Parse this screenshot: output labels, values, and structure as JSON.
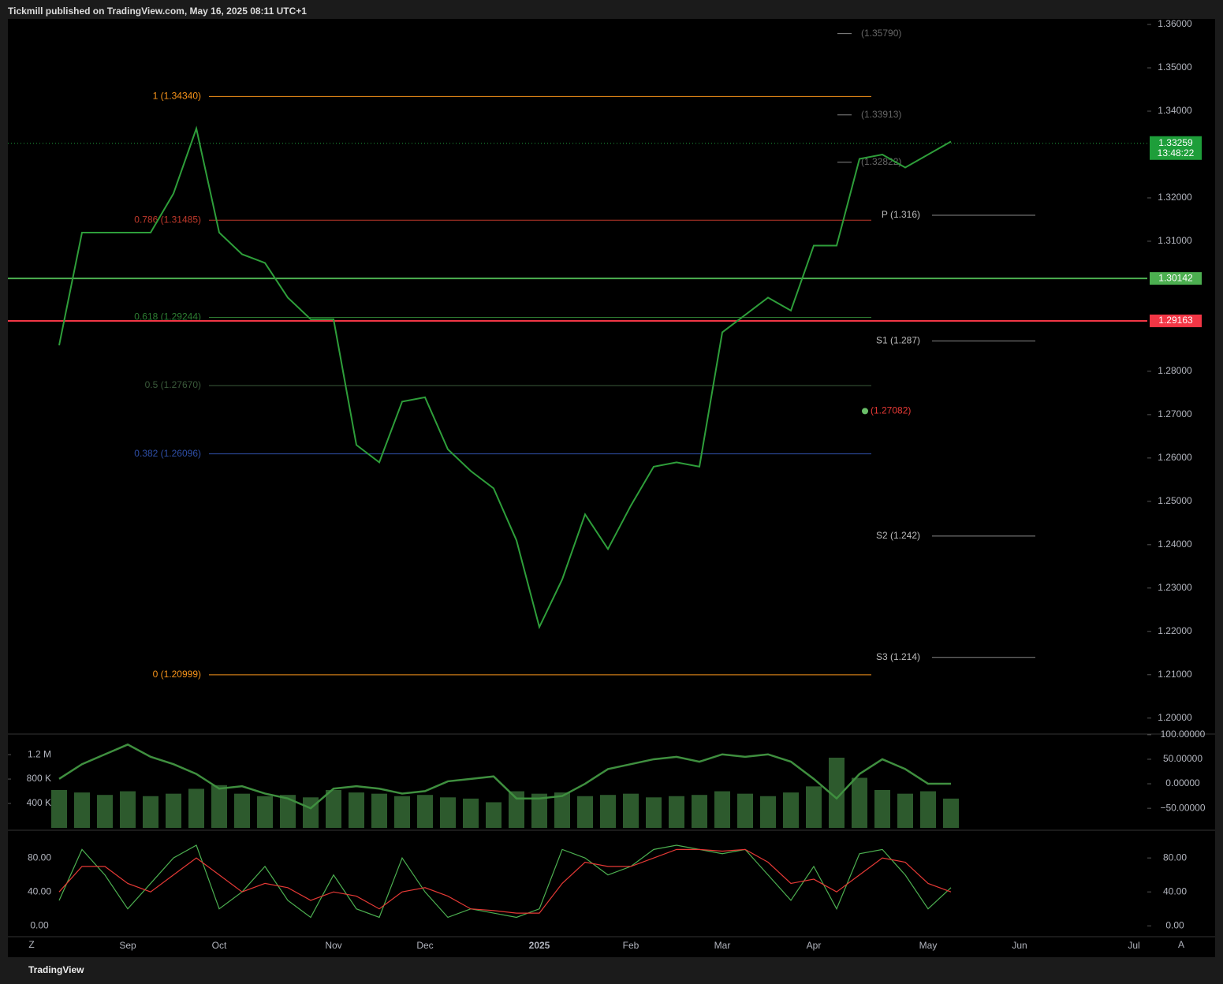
{
  "header": {
    "publisher": "Tickmill published on TradingView.com, May 16, 2025 08:11 UTC+1"
  },
  "footer": {
    "brand": "TradingView",
    "left_button": "Z",
    "right_button": "A"
  },
  "chart_data": [
    {
      "type": "line",
      "categories": [
        null,
        null,
        null,
        "Sep",
        null,
        null,
        null,
        "Oct",
        null,
        null,
        null,
        null,
        "Nov",
        null,
        null,
        null,
        "Dec",
        null,
        null,
        null,
        null,
        "2025",
        null,
        null,
        null,
        "Feb",
        null,
        null,
        null,
        "Mar",
        null,
        null,
        null,
        "Apr",
        null,
        null,
        null,
        null,
        "May",
        null,
        null,
        null,
        "Jun",
        null,
        null,
        null,
        null,
        "Jul"
      ],
      "values": [
        1.286,
        1.312,
        1.312,
        1.312,
        1.312,
        1.321,
        1.336,
        1.312,
        1.307,
        1.305,
        1.297,
        1.292,
        1.292,
        1.263,
        1.259,
        1.273,
        1.274,
        1.262,
        1.257,
        1.253,
        1.241,
        1.221,
        1.232,
        1.247,
        1.239,
        1.249,
        1.258,
        1.259,
        1.258,
        1.289,
        1.293,
        1.297,
        1.294,
        1.309,
        1.309,
        1.329,
        1.33,
        1.327,
        1.33,
        1.333,
        null,
        null,
        null,
        null,
        null,
        null,
        null,
        null
      ],
      "color": "#2e9e3a",
      "ylim": [
        1.1965,
        1.3611
      ],
      "yticks": [
        {
          "value": 1.2,
          "label": "1.20000"
        },
        {
          "value": 1.21,
          "label": "1.21000"
        },
        {
          "value": 1.22,
          "label": "1.22000"
        },
        {
          "value": 1.23,
          "label": "1.23000"
        },
        {
          "value": 1.24,
          "label": "1.24000"
        },
        {
          "value": 1.25,
          "label": "1.25000"
        },
        {
          "value": 1.26,
          "label": "1.26000"
        },
        {
          "value": 1.27,
          "label": "1.27000"
        },
        {
          "value": 1.28,
          "label": "1.28000"
        },
        {
          "value": 1.31,
          "label": "1.31000"
        },
        {
          "value": 1.32,
          "label": "1.32000"
        },
        {
          "value": 1.34,
          "label": "1.34000"
        },
        {
          "value": 1.35,
          "label": "1.35000"
        },
        {
          "value": 1.36,
          "label": "1.36000"
        }
      ],
      "grid": false,
      "last_price": {
        "value": 1.33259,
        "label": "1.33259",
        "countdown": "13:48:22",
        "color": "#1e9e3a"
      },
      "levels": [
        {
          "value": 1.30142,
          "label": "1.30142",
          "color": "#4caf50"
        },
        {
          "value": 1.29163,
          "label": "1.29163",
          "color": "#f23645"
        }
      ],
      "fib_levels": [
        {
          "value": 1.3434,
          "label": "1 (1.34340)",
          "color": "#f7931a"
        },
        {
          "value": 1.31485,
          "label": "0.786 (1.31485)",
          "color": "#c0392b"
        },
        {
          "value": 1.29244,
          "label": "0.618 (1.29244)",
          "color": "#2e7d32"
        },
        {
          "value": 1.2767,
          "label": "0.5 (1.27670)",
          "color": "#3a5a3a"
        },
        {
          "value": 1.26096,
          "label": "0.382 (1.26096)",
          "color": "#2f4fa8"
        },
        {
          "value": 1.20999,
          "label": "0 (1.20999)",
          "color": "#f7931a"
        }
      ],
      "pivots": [
        {
          "value": 1.3579,
          "label": "(1.35790)"
        },
        {
          "value": 1.33913,
          "label": "(1.33913)"
        },
        {
          "value": 1.32822,
          "label": "(1.32822)"
        },
        {
          "value": 1.316,
          "label": "P (1.316)"
        },
        {
          "value": 1.287,
          "label": "S1 (1.287)"
        },
        {
          "value": 1.242,
          "label": "S2 (1.242)"
        },
        {
          "value": 1.214,
          "label": "S3 (1.214)"
        }
      ],
      "low_marker": {
        "value": 1.27082,
        "label": "(1.27082)"
      }
    },
    {
      "type": "bar",
      "values": [
        620000,
        580000,
        540000,
        600000,
        520000,
        560000,
        640000,
        700000,
        560000,
        520000,
        540000,
        500000,
        620000,
        580000,
        560000,
        520000,
        540000,
        500000,
        480000,
        420000,
        600000,
        560000,
        580000,
        520000,
        540000,
        560000,
        500000,
        520000,
        540000,
        600000,
        560000,
        520000,
        580000,
        680000,
        1150000,
        820000,
        620000,
        560000,
        600000,
        480000
      ],
      "color": "#2d5a2d",
      "ylim": [
        0,
        1550000
      ],
      "yticks": [
        {
          "value": 400000,
          "label": "400 K"
        },
        {
          "value": 800000,
          "label": "800 K"
        },
        {
          "value": 1200000,
          "label": "1.2 M"
        }
      ],
      "y2lim": [
        -90,
        103
      ],
      "y2ticks": [
        {
          "value": -50,
          "label": "−50.00000"
        },
        {
          "value": 0,
          "label": "0.00000"
        },
        {
          "value": 50,
          "label": "50.00000"
        },
        {
          "value": 100,
          "label": "100.00000"
        }
      ],
      "series": [
        {
          "axis": "y2",
          "color": "#3f8f3f",
          "values": [
            10,
            40,
            60,
            80,
            55,
            40,
            20,
            -10,
            -5,
            -20,
            -30,
            -50,
            -10,
            -5,
            -10,
            -20,
            -15,
            5,
            10,
            15,
            -30,
            -30,
            -25,
            0,
            30,
            40,
            50,
            55,
            45,
            60,
            55,
            60,
            45,
            10,
            -30,
            20,
            50,
            30,
            0,
            0
          ]
        }
      ]
    },
    {
      "type": "line",
      "ylim": [
        -10,
        108
      ],
      "yticks": [
        {
          "value": 0,
          "label": "0.00"
        },
        {
          "value": 40,
          "label": "40.00"
        },
        {
          "value": 80,
          "label": "80.00"
        }
      ],
      "series": [
        {
          "color": "#4caf50",
          "values": [
            30,
            90,
            60,
            20,
            50,
            80,
            95,
            20,
            40,
            70,
            30,
            10,
            60,
            20,
            10,
            80,
            40,
            10,
            20,
            15,
            10,
            20,
            90,
            80,
            60,
            70,
            90,
            95,
            90,
            85,
            90,
            60,
            30,
            70,
            20,
            85,
            90,
            60,
            20,
            45
          ]
        },
        {
          "color": "#e53935",
          "values": [
            40,
            70,
            70,
            50,
            40,
            60,
            80,
            60,
            40,
            50,
            45,
            30,
            40,
            35,
            20,
            40,
            45,
            35,
            20,
            18,
            15,
            15,
            50,
            75,
            70,
            70,
            80,
            90,
            90,
            88,
            90,
            75,
            50,
            55,
            40,
            60,
            80,
            75,
            50,
            40
          ]
        }
      ]
    }
  ]
}
